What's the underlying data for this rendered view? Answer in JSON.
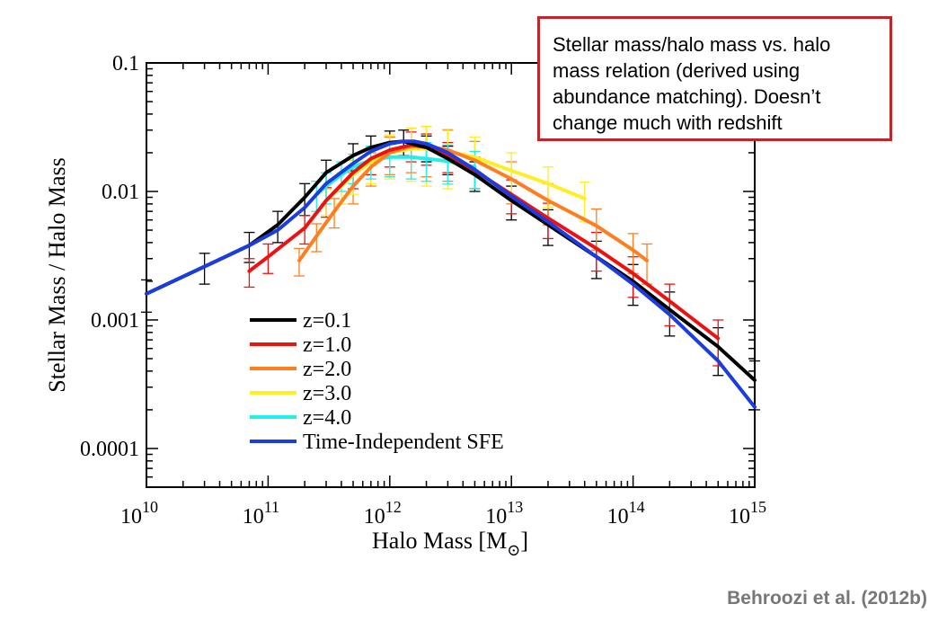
{
  "annotation": {
    "text": "Stellar mass/halo mass vs. halo mass relation (derived using abundance matching). Doesn’t change much with redshift"
  },
  "credit": "Behroozi et al. (2012b)",
  "chart_data": {
    "type": "line",
    "xlabel": "Halo Mass [M",
    "xlabel_sub": "⊙",
    "xlabel_close": "]",
    "ylabel": "Stellar Mass / Halo Mass",
    "x_scale": "log",
    "y_scale": "log",
    "xlim": [
      10000000000.0,
      1000000000000000.0
    ],
    "ylim": [
      5e-05,
      0.1
    ],
    "x_ticks": [
      {
        "value": 10000000000.0,
        "base": "10",
        "exp": "10"
      },
      {
        "value": 100000000000.0,
        "base": "10",
        "exp": "11"
      },
      {
        "value": 1000000000000.0,
        "base": "10",
        "exp": "12"
      },
      {
        "value": 10000000000000.0,
        "base": "10",
        "exp": "13"
      },
      {
        "value": 100000000000000.0,
        "base": "10",
        "exp": "14"
      },
      {
        "value": 1000000000000000.0,
        "base": "10",
        "exp": "15"
      }
    ],
    "y_ticks": [
      {
        "value": 0.1,
        "label": "0.1"
      },
      {
        "value": 0.01,
        "label": "0.01"
      },
      {
        "value": 0.001,
        "label": "0.001"
      },
      {
        "value": 0.0001,
        "label": "0.0001"
      }
    ],
    "grid": false,
    "legend_position": "bottom-left",
    "series": [
      {
        "name": "z=0.1",
        "color": "#000000",
        "x": [
          10000000000.0,
          30000000000.0,
          70000000000.0,
          120000000000.0,
          200000000000.0,
          300000000000.0,
          500000000000.0,
          700000000000.0,
          1000000000000.0,
          1300000000000.0,
          2000000000000.0,
          3000000000000.0,
          5000000000000.0,
          10000000000000.0,
          20000000000000.0,
          50000000000000.0,
          100000000000000.0,
          200000000000000.0,
          500000000000000.0,
          1000000000000000.0
        ],
        "y": [
          0.0016,
          0.0026,
          0.0038,
          0.0055,
          0.009,
          0.014,
          0.019,
          0.022,
          0.024,
          0.0245,
          0.022,
          0.018,
          0.0135,
          0.0085,
          0.0055,
          0.0031,
          0.002,
          0.0012,
          0.00062,
          0.00034
        ],
        "error": [
          0.00045,
          0.0007,
          0.001,
          0.0015,
          0.0025,
          0.0035,
          0.0045,
          0.005,
          0.0055,
          0.0055,
          0.005,
          0.0045,
          0.0035,
          0.0025,
          0.0017,
          0.001,
          0.0007,
          0.00045,
          0.00025,
          0.00014
        ]
      },
      {
        "name": "z=1.0",
        "color": "#ee1111",
        "x": [
          70000000000.0,
          100000000000.0,
          200000000000.0,
          300000000000.0,
          500000000000.0,
          700000000000.0,
          1000000000000.0,
          1500000000000.0,
          2000000000000.0,
          3000000000000.0,
          5000000000000.0,
          10000000000000.0,
          20000000000000.0,
          50000000000000.0,
          100000000000000.0,
          200000000000000.0,
          500000000000000.0
        ],
        "y": [
          0.0024,
          0.0031,
          0.0052,
          0.0085,
          0.014,
          0.018,
          0.021,
          0.023,
          0.022,
          0.019,
          0.0145,
          0.0095,
          0.0062,
          0.0036,
          0.0023,
          0.0014,
          0.00072
        ],
        "error": [
          0.0006,
          0.0008,
          0.0013,
          0.0022,
          0.0035,
          0.0045,
          0.0055,
          0.006,
          0.006,
          0.005,
          0.004,
          0.0028,
          0.0019,
          0.0012,
          0.0008,
          0.0005,
          0.00028
        ]
      },
      {
        "name": "z=2.0",
        "color": "#ff7f20",
        "x": [
          180000000000.0,
          250000000000.0,
          350000000000.0,
          500000000000.0,
          700000000000.0,
          1000000000000.0,
          1500000000000.0,
          2000000000000.0,
          3000000000000.0,
          5000000000000.0,
          10000000000000.0,
          20000000000000.0,
          50000000000000.0,
          100000000000000.0,
          130000000000000.0
        ],
        "y": [
          0.0029,
          0.0045,
          0.007,
          0.011,
          0.0155,
          0.02,
          0.0225,
          0.0225,
          0.021,
          0.0175,
          0.0125,
          0.0085,
          0.0054,
          0.0035,
          0.0029
        ],
        "error": [
          0.0007,
          0.0011,
          0.0018,
          0.003,
          0.0045,
          0.0065,
          0.0085,
          0.0095,
          0.009,
          0.007,
          0.0045,
          0.003,
          0.0019,
          0.0012,
          0.001
        ]
      },
      {
        "name": "z=3.0",
        "color": "#ffee22",
        "x": [
          300000000000.0,
          400000000000.0,
          500000000000.0,
          700000000000.0,
          1000000000000.0,
          1500000000000.0,
          2000000000000.0,
          3000000000000.0,
          5000000000000.0,
          10000000000000.0,
          20000000000000.0,
          40000000000000.0
        ],
        "y": [
          0.0085,
          0.011,
          0.0135,
          0.017,
          0.02,
          0.0215,
          0.0215,
          0.0205,
          0.0185,
          0.0145,
          0.0115,
          0.0088
        ],
        "error": [
          0.002,
          0.003,
          0.004,
          0.0055,
          0.0075,
          0.0095,
          0.0105,
          0.01,
          0.008,
          0.0055,
          0.004,
          0.003
        ]
      },
      {
        "name": "z=4.0",
        "color": "#22eeee",
        "x": [
          250000000000.0,
          300000000000.0,
          400000000000.0,
          500000000000.0,
          700000000000.0,
          1000000000000.0,
          1500000000000.0,
          2000000000000.0,
          3000000000000.0,
          5000000000000.0
        ],
        "y": [
          0.0095,
          0.011,
          0.0135,
          0.0155,
          0.0175,
          0.0185,
          0.0185,
          0.018,
          0.0172,
          0.0155
        ],
        "error": [
          0.0025,
          0.003,
          0.0035,
          0.004,
          0.005,
          0.0055,
          0.006,
          0.006,
          0.0058,
          0.005
        ]
      },
      {
        "name": "Time-Independent SFE",
        "color": "#1a3ce0",
        "x": [
          10000000000.0,
          30000000000.0,
          70000000000.0,
          120000000000.0,
          200000000000.0,
          300000000000.0,
          500000000000.0,
          700000000000.0,
          1000000000000.0,
          1300000000000.0,
          1600000000000.0,
          2000000000000.0,
          3000000000000.0,
          5000000000000.0,
          10000000000000.0,
          20000000000000.0,
          50000000000000.0,
          100000000000000.0,
          200000000000000.0,
          500000000000000.0,
          1000000000000000.0
        ],
        "y": [
          0.0016,
          0.0026,
          0.0038,
          0.005,
          0.0075,
          0.0115,
          0.0165,
          0.0205,
          0.0235,
          0.0245,
          0.0245,
          0.0235,
          0.02,
          0.0148,
          0.0092,
          0.0058,
          0.0031,
          0.0019,
          0.0011,
          0.00048,
          0.00021
        ],
        "error": null
      }
    ]
  }
}
